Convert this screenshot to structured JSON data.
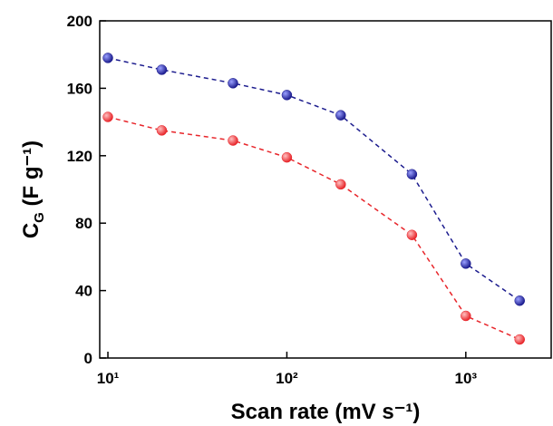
{
  "chart_data": {
    "type": "line",
    "x_label": "Scan rate (mV s⁻¹)",
    "y_label": {
      "text": "C",
      "subscript": "G",
      "rest": " (F g⁻¹)"
    },
    "x": [
      10,
      20,
      50,
      100,
      200,
      500,
      1000,
      2000
    ],
    "series": [
      {
        "name": "blue",
        "color": "#1c1c8e",
        "values": [
          178,
          171,
          163,
          156,
          144,
          109,
          56,
          34
        ]
      },
      {
        "name": "red",
        "color": "#e8262b",
        "values": [
          143,
          135,
          129,
          119,
          103,
          73,
          25,
          11
        ]
      }
    ],
    "xlim": [
      9,
      3000
    ],
    "log_x": true,
    "xticks": [
      {
        "value": 10,
        "label": "10¹"
      },
      {
        "value": 100,
        "label": "10²"
      },
      {
        "value": 1000,
        "label": "10³"
      }
    ],
    "ylim": [
      0,
      200
    ],
    "yticks": [
      0,
      40,
      80,
      120,
      160,
      200
    ]
  }
}
